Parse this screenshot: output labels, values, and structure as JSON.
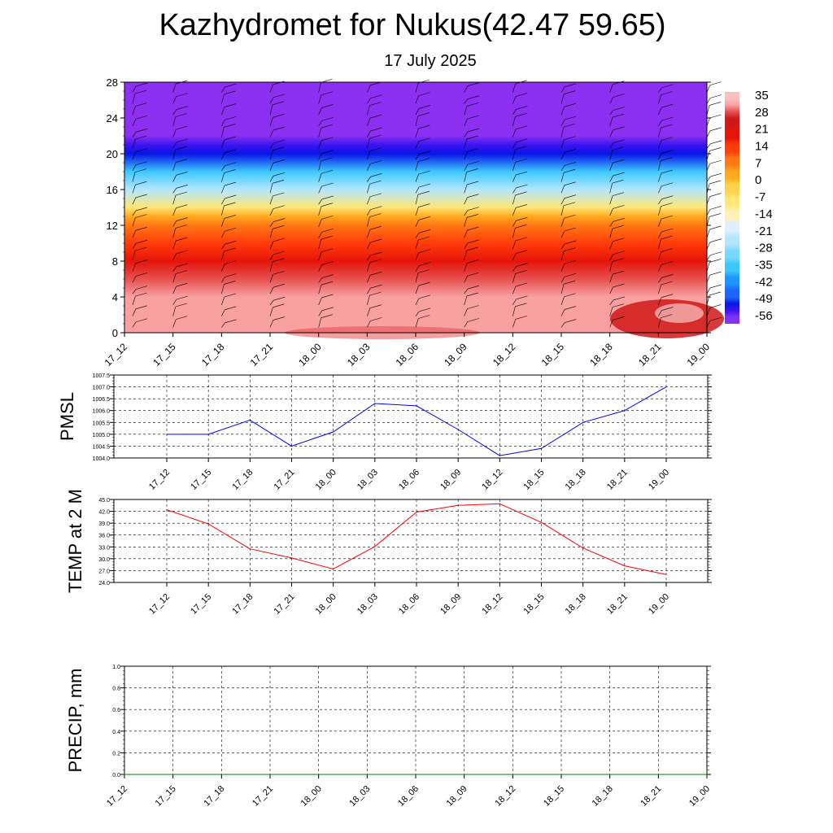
{
  "header": {
    "title": "Kazhydromet for Nukus(42.47 59.65)",
    "subtitle": "17 July 2025"
  },
  "chart_data": [
    {
      "type": "heatmap",
      "x_tick_labels": [
        "17_12",
        "17_15",
        "17_18",
        "17_21",
        "18_00",
        "18_03",
        "18_06",
        "18_09",
        "18_12",
        "18_15",
        "18_18",
        "18_21",
        "19_00"
      ],
      "y_tick_labels": [
        "0",
        "4",
        "8",
        "12",
        "16",
        "20",
        "24",
        "28"
      ],
      "ylim": [
        0,
        28
      ],
      "colorbar": {
        "labels": [
          "35",
          "28",
          "21",
          "14",
          "7",
          "0",
          "-7",
          "-14",
          "-21",
          "-28",
          "-35",
          "-42",
          "-49",
          "-56"
        ],
        "range": [
          -63,
          42
        ]
      },
      "temperature_profile": [
        {
          "level": 0,
          "value": 38
        },
        {
          "level": 4,
          "value": 37
        },
        {
          "level": 6,
          "value": 31
        },
        {
          "level": 8,
          "value": 24
        },
        {
          "level": 10,
          "value": 17
        },
        {
          "level": 12,
          "value": 10
        },
        {
          "level": 13,
          "value": 3
        },
        {
          "level": 14,
          "value": -10
        },
        {
          "level": 16,
          "value": -22
        },
        {
          "level": 18,
          "value": -38
        },
        {
          "level": 20,
          "value": -52
        },
        {
          "level": 21,
          "value": -58
        },
        {
          "level": 22,
          "value": -63
        },
        {
          "level": 28,
          "value": -63
        }
      ],
      "wind_barbs": true
    },
    {
      "type": "line",
      "ylabel": "PMSL",
      "x": [
        "17_12",
        "17_15",
        "17_18",
        "17_21",
        "18_00",
        "18_03",
        "18_06",
        "18_09",
        "18_12",
        "18_15",
        "18_18",
        "18_21",
        "19_00"
      ],
      "y_tick_labels": [
        "1004.0",
        "1004.5",
        "1005.0",
        "1005.5",
        "1006.0",
        "1006.5",
        "1007.0",
        "1007.5"
      ],
      "ylim": [
        1004.0,
        1007.5
      ],
      "series": [
        {
          "values": [
            1005.0,
            1005.0,
            1005.6,
            1004.5,
            1005.1,
            1006.3,
            1006.2,
            1005.2,
            1004.1,
            1004.4,
            1005.5,
            1006.0,
            1007.0
          ],
          "color": "#0000ff"
        }
      ],
      "grid": true
    },
    {
      "type": "line",
      "ylabel": "TEMP at 2 M",
      "x": [
        "17_12",
        "17_15",
        "17_18",
        "17_21",
        "18_00",
        "18_03",
        "18_06",
        "18_09",
        "18_12",
        "18_15",
        "18_18",
        "18_21",
        "19_00"
      ],
      "y_tick_labels": [
        "24.0",
        "27.0",
        "30.0",
        "33.0",
        "36.0",
        "39.0",
        "42.0",
        "45.0"
      ],
      "ylim": [
        24.0,
        45.0
      ],
      "series": [
        {
          "values": [
            42.4,
            38.8,
            32.5,
            30.2,
            27.4,
            33.1,
            41.8,
            43.5,
            43.9,
            39.2,
            32.7,
            28.2,
            26.0
          ],
          "color": "#ff0000"
        }
      ],
      "grid": true
    },
    {
      "type": "line",
      "ylabel": "PRECIP, mm",
      "x": [
        "17_12",
        "17_15",
        "17_18",
        "17_21",
        "18_00",
        "18_03",
        "18_06",
        "18_09",
        "18_12",
        "18_15",
        "18_18",
        "18_21",
        "19_00"
      ],
      "y_tick_labels": [
        "0.0",
        "0.2",
        "0.4",
        "0.6",
        "0.8",
        "1.0"
      ],
      "ylim": [
        0.0,
        1.0
      ],
      "series": [
        {
          "values": [
            0,
            0,
            0,
            0,
            0,
            0,
            0,
            0,
            0,
            0,
            0,
            0,
            0
          ],
          "color": "#008000"
        }
      ],
      "grid": true
    }
  ]
}
